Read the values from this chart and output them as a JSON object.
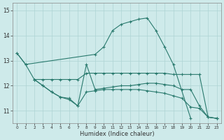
{
  "xlabel": "Humidex (Indice chaleur)",
  "background_color": "#ceeaea",
  "grid_color": "#aed4d4",
  "line_color": "#2a7a6e",
  "xlim": [
    -0.5,
    23.5
  ],
  "ylim": [
    10.5,
    15.3
  ],
  "yticks": [
    11,
    12,
    13,
    14,
    15
  ],
  "xticks": [
    0,
    1,
    2,
    3,
    4,
    5,
    6,
    7,
    8,
    9,
    10,
    11,
    12,
    13,
    14,
    15,
    16,
    17,
    18,
    19,
    20,
    21,
    22,
    23
  ],
  "lines": [
    {
      "x": [
        0,
        1,
        9,
        10,
        11,
        12,
        13,
        14,
        15,
        16,
        17,
        18,
        20
      ],
      "y": [
        13.3,
        12.85,
        13.25,
        13.55,
        14.2,
        14.45,
        14.55,
        14.65,
        14.7,
        14.2,
        13.55,
        12.85,
        10.7
      ]
    },
    {
      "x": [
        0,
        1,
        2,
        3,
        4,
        5,
        6,
        7,
        8,
        9,
        10,
        11,
        12,
        13,
        14,
        15,
        16,
        17,
        18,
        19,
        20,
        21,
        22,
        23
      ],
      "y": [
        13.3,
        12.85,
        12.25,
        12.25,
        12.25,
        12.25,
        12.25,
        12.25,
        12.5,
        12.5,
        12.5,
        12.5,
        12.5,
        12.5,
        12.5,
        12.5,
        12.5,
        12.5,
        12.45,
        12.45,
        12.45,
        12.45,
        10.75,
        10.7
      ]
    },
    {
      "x": [
        2,
        3,
        4,
        5,
        6,
        7,
        8,
        9,
        10,
        11,
        12,
        13,
        14,
        15,
        16,
        17,
        18,
        19,
        20,
        21,
        22,
        23
      ],
      "y": [
        12.25,
        12.0,
        11.75,
        11.55,
        11.5,
        11.2,
        12.85,
        11.85,
        11.9,
        11.95,
        12.0,
        12.0,
        12.05,
        12.1,
        12.1,
        12.05,
        12.0,
        11.85,
        11.85,
        11.2,
        10.75,
        10.7
      ]
    },
    {
      "x": [
        2,
        3,
        4,
        5,
        6,
        7,
        8,
        9,
        10,
        11,
        12,
        13,
        14,
        15,
        16,
        17,
        18,
        19,
        20,
        21,
        22,
        23
      ],
      "y": [
        12.25,
        12.0,
        11.75,
        11.55,
        11.45,
        11.2,
        11.75,
        11.8,
        11.85,
        11.85,
        11.85,
        11.85,
        11.85,
        11.8,
        11.75,
        11.7,
        11.6,
        11.5,
        11.15,
        11.1,
        10.75,
        10.7
      ]
    }
  ]
}
